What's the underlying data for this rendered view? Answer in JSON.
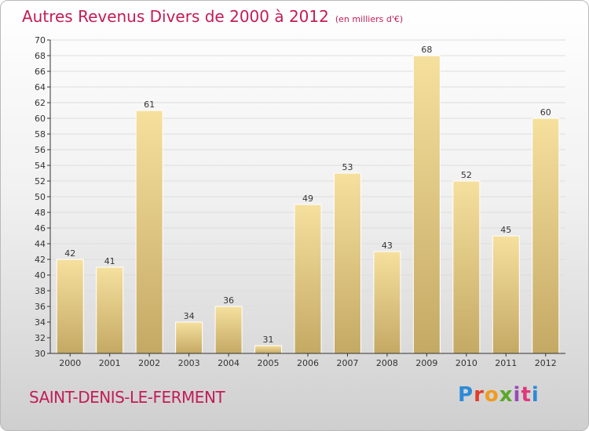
{
  "title": "Autres Revenus Divers de 2000 à 2012",
  "subtitle": "(en milliers d'€)",
  "town": "SAINT-DENIS-LE-FERMENT",
  "logo": {
    "p": "P",
    "r": "r",
    "o": "o",
    "x": "x",
    "i": "i",
    "t": "t",
    "i2": "i"
  },
  "colors": {
    "title": "#c21c57",
    "bar_light": "#f6e09e",
    "bar_dark": "#c4a964",
    "axis": "#333333",
    "grid": "#dddddd"
  },
  "chart_data": {
    "type": "bar",
    "categories": [
      "2000",
      "2001",
      "2002",
      "2003",
      "2004",
      "2005",
      "2006",
      "2007",
      "2008",
      "2009",
      "2010",
      "2011",
      "2012"
    ],
    "values": [
      42,
      41,
      61,
      34,
      36,
      31,
      49,
      53,
      43,
      68,
      52,
      45,
      60
    ],
    "ylim": [
      30,
      70
    ],
    "yticks": [
      30,
      32,
      34,
      36,
      38,
      40,
      42,
      44,
      46,
      48,
      50,
      52,
      54,
      56,
      58,
      60,
      62,
      64,
      66,
      68,
      70
    ],
    "grid": true,
    "legend": "none",
    "data_labels": true
  }
}
